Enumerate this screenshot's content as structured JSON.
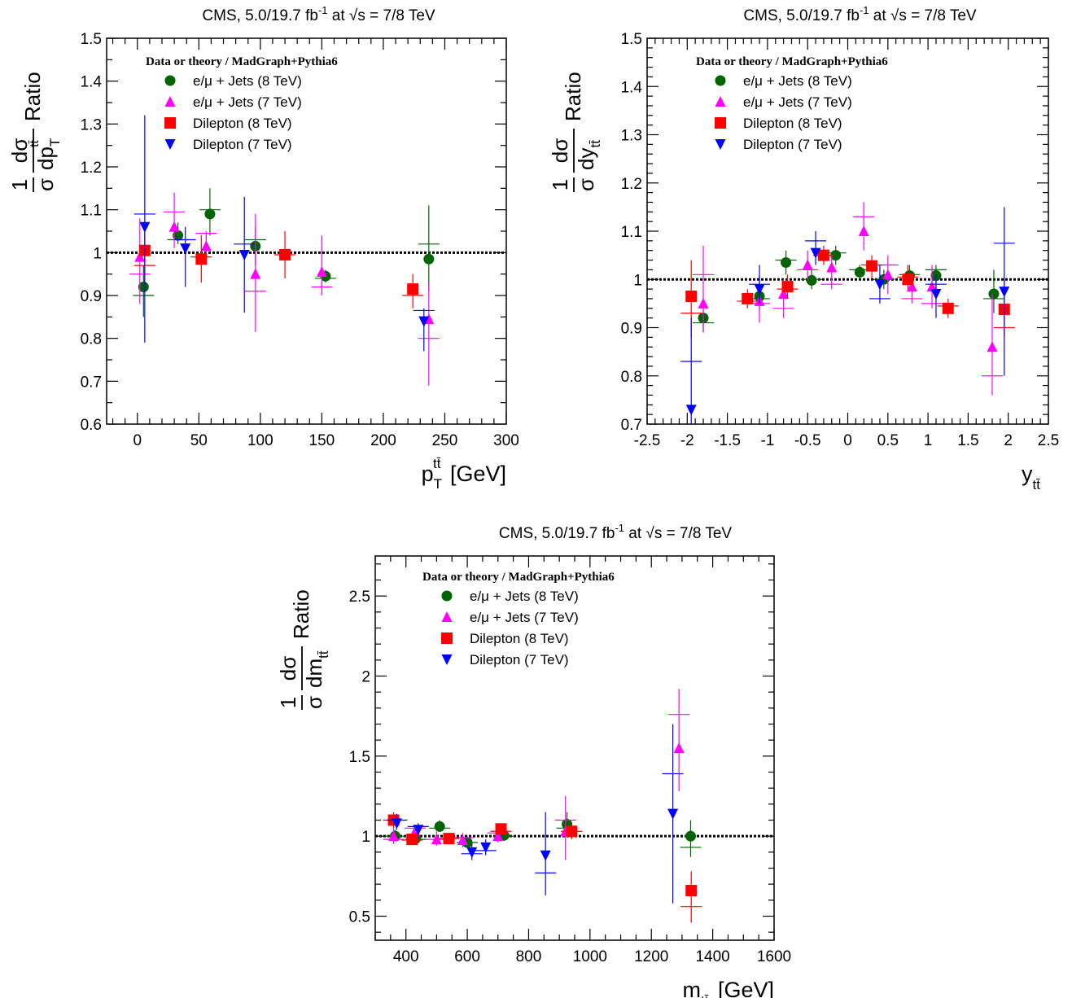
{
  "markers": {
    "ej8": {
      "color": "#006400",
      "shape": "circle"
    },
    "ej7": {
      "color": "#ff00ff",
      "shape": "triangle-up"
    },
    "dl8": {
      "color": "#ff0000",
      "shape": "square"
    },
    "dl7": {
      "color": "#0000ff",
      "shape": "triangle-down"
    }
  },
  "chart_data": [
    {
      "type": "scatter",
      "title": "CMS, 5.0/19.7 fb⁻¹ at √s = 7/8 TeV",
      "xlabel": "p_T^{tt̄} [GeV]",
      "ylabel": "1/σ dσ/dp_T^{tt̄} Ratio",
      "xlim": [
        -25,
        300
      ],
      "ylim": [
        0.6,
        1.5
      ],
      "xticks": [
        "0",
        "50",
        "100",
        "150",
        "200",
        "250",
        "300"
      ],
      "yticks": [
        "0.6",
        "0.7",
        "0.8",
        "0.9",
        "1",
        "1.1",
        "1.2",
        "1.3",
        "1.4",
        "1.5"
      ],
      "reference_line": 1.0,
      "legend_title": "Data or theory / MadGraph+Pythia6",
      "legend_position": "top-left",
      "series": [
        {
          "key": "ej8",
          "name": "e/μ + Jets (8 TeV)",
          "points": [
            {
              "x": 5,
              "y": 0.92,
              "lo": 0.85,
              "hi": 0.97,
              "t": 0.9
            },
            {
              "x": 33,
              "y": 1.04,
              "lo": 1.02,
              "hi": 1.07,
              "t": 1.03
            },
            {
              "x": 59,
              "y": 1.09,
              "lo": 1.04,
              "hi": 1.15,
              "t": 1.1
            },
            {
              "x": 96,
              "y": 1.015,
              "lo": 0.97,
              "hi": 1.06,
              "t": 1.03
            },
            {
              "x": 153,
              "y": 0.945,
              "lo": 0.93,
              "hi": 0.96,
              "t": 0.94
            },
            {
              "x": 237,
              "y": 0.985,
              "lo": 0.91,
              "hi": 1.11,
              "t": 1.02
            }
          ]
        },
        {
          "key": "ej7",
          "name": "e/μ + Jets (7 TeV)",
          "points": [
            {
              "x": 2,
              "y": 0.99,
              "lo": 0.88,
              "hi": 1.08,
              "t": 0.95
            },
            {
              "x": 30,
              "y": 1.06,
              "lo": 1.01,
              "hi": 1.14,
              "t": 1.095
            },
            {
              "x": 56,
              "y": 1.015,
              "lo": 0.99,
              "hi": 1.05,
              "t": 1.045
            },
            {
              "x": 96,
              "y": 0.95,
              "lo": 0.815,
              "hi": 1.09,
              "t": 0.91
            },
            {
              "x": 150,
              "y": 0.955,
              "lo": 0.9,
              "hi": 1.04,
              "t": 0.92
            },
            {
              "x": 237,
              "y": 0.845,
              "lo": 0.69,
              "hi": 0.93,
              "t": 0.8
            }
          ]
        },
        {
          "key": "dl8",
          "name": "Dilepton (8 TeV)",
          "points": [
            {
              "x": 6,
              "y": 1.005,
              "lo": 0.93,
              "hi": 1.06,
              "t": 0.97
            },
            {
              "x": 52,
              "y": 0.985,
              "lo": 0.93,
              "hi": 1.04,
              "t": 0.99
            },
            {
              "x": 120,
              "y": 0.995,
              "lo": 0.94,
              "hi": 1.05,
              "t": 0.995
            },
            {
              "x": 224,
              "y": 0.915,
              "lo": 0.87,
              "hi": 0.95,
              "t": 0.9
            }
          ]
        },
        {
          "key": "dl7",
          "name": "Dilepton (7 TeV)",
          "points": [
            {
              "x": 6,
              "y": 1.06,
              "lo": 0.79,
              "hi": 1.32,
              "t": 1.09
            },
            {
              "x": 39,
              "y": 1.01,
              "lo": 0.92,
              "hi": 1.06,
              "t": 1.03
            },
            {
              "x": 87,
              "y": 0.995,
              "lo": 0.86,
              "hi": 1.13,
              "t": 1.02
            },
            {
              "x": 233,
              "y": 0.84,
              "lo": 0.77,
              "hi": 0.87,
              "t": 0.865
            }
          ]
        }
      ]
    },
    {
      "type": "scatter",
      "title": "CMS, 5.0/19.7 fb⁻¹ at √s = 7/8 TeV",
      "xlabel": "y_{tt̄}",
      "ylabel": "1/σ dσ/dy_{tt̄} Ratio",
      "xlim": [
        -2.5,
        2.5
      ],
      "ylim": [
        0.7,
        1.5
      ],
      "xticks": [
        "-2.5",
        "-2",
        "-1.5",
        "-1",
        "-0.5",
        "0",
        "0.5",
        "1",
        "1.5",
        "2",
        "2.5"
      ],
      "yticks": [
        "0.7",
        "0.8",
        "0.9",
        "1",
        "1.1",
        "1.2",
        "1.3",
        "1.4",
        "1.5"
      ],
      "reference_line": 1.0,
      "legend_title": "Data or theory / MadGraph+Pythia6",
      "legend_position": "top-left",
      "series": [
        {
          "key": "ej8",
          "name": "e/μ + Jets (8 TeV)",
          "points": [
            {
              "x": -1.8,
              "y": 0.92,
              "lo": 0.89,
              "hi": 0.95,
              "t": 0.91
            },
            {
              "x": -1.1,
              "y": 0.965,
              "lo": 0.94,
              "hi": 0.99,
              "t": 0.96
            },
            {
              "x": -0.77,
              "y": 1.035,
              "lo": 1.01,
              "hi": 1.06,
              "t": 1.04
            },
            {
              "x": -0.45,
              "y": 0.998,
              "lo": 0.98,
              "hi": 1.02,
              "t": 1.0
            },
            {
              "x": -0.15,
              "y": 1.05,
              "lo": 1.03,
              "hi": 1.07,
              "t": 1.055
            },
            {
              "x": 0.15,
              "y": 1.015,
              "lo": 1.0,
              "hi": 1.03,
              "t": 1.02
            },
            {
              "x": 0.45,
              "y": 1.0,
              "lo": 0.98,
              "hi": 1.02,
              "t": 1.0
            },
            {
              "x": 0.77,
              "y": 1.008,
              "lo": 0.99,
              "hi": 1.03,
              "t": 1.01
            },
            {
              "x": 1.1,
              "y": 1.008,
              "lo": 0.98,
              "hi": 1.03,
              "t": 1.02
            },
            {
              "x": 1.82,
              "y": 0.97,
              "lo": 0.93,
              "hi": 1.02,
              "t": 0.96
            }
          ]
        },
        {
          "key": "ej7",
          "name": "e/μ + Jets (7 TeV)",
          "points": [
            {
              "x": -1.8,
              "y": 0.95,
              "lo": 0.89,
              "hi": 1.07,
              "t": 1.01
            },
            {
              "x": -1.1,
              "y": 0.955,
              "lo": 0.91,
              "hi": 1.01,
              "t": 0.95
            },
            {
              "x": -0.8,
              "y": 0.97,
              "lo": 0.92,
              "hi": 1.0,
              "t": 0.94
            },
            {
              "x": -0.5,
              "y": 1.03,
              "lo": 1.0,
              "hi": 1.06,
              "t": 1.02
            },
            {
              "x": -0.2,
              "y": 1.025,
              "lo": 0.98,
              "hi": 1.05,
              "t": 0.99
            },
            {
              "x": 0.2,
              "y": 1.1,
              "lo": 1.06,
              "hi": 1.16,
              "t": 1.13
            },
            {
              "x": 0.5,
              "y": 1.01,
              "lo": 0.97,
              "hi": 1.05,
              "t": 1.03
            },
            {
              "x": 0.8,
              "y": 0.985,
              "lo": 0.95,
              "hi": 1.01,
              "t": 0.96
            },
            {
              "x": 1.05,
              "y": 0.985,
              "lo": 0.94,
              "hi": 1.03,
              "t": 0.95
            },
            {
              "x": 1.8,
              "y": 0.86,
              "lo": 0.76,
              "hi": 0.97,
              "t": 0.8
            }
          ]
        },
        {
          "key": "dl8",
          "name": "Dilepton (8 TeV)",
          "points": [
            {
              "x": -1.95,
              "y": 0.965,
              "lo": 0.88,
              "hi": 1.04,
              "t": 0.93
            },
            {
              "x": -1.25,
              "y": 0.96,
              "lo": 0.94,
              "hi": 0.98,
              "t": 0.955
            },
            {
              "x": -0.75,
              "y": 0.985,
              "lo": 0.96,
              "hi": 1.01,
              "t": 0.98
            },
            {
              "x": -0.3,
              "y": 1.05,
              "lo": 1.03,
              "hi": 1.07,
              "t": 1.05
            },
            {
              "x": 0.3,
              "y": 1.028,
              "lo": 1.0,
              "hi": 1.05,
              "t": 1.03
            },
            {
              "x": 0.75,
              "y": 1.0,
              "lo": 0.98,
              "hi": 1.03,
              "t": 1.005
            },
            {
              "x": 1.25,
              "y": 0.94,
              "lo": 0.92,
              "hi": 0.96,
              "t": 0.945
            },
            {
              "x": 1.95,
              "y": 0.938,
              "lo": 0.88,
              "hi": 1.0,
              "t": 0.9
            }
          ]
        },
        {
          "key": "dl7",
          "name": "Dilepton (7 TeV)",
          "points": [
            {
              "x": -1.95,
              "y": 0.73,
              "lo": 0.7,
              "hi": 0.92,
              "t": 0.83
            },
            {
              "x": -1.1,
              "y": 0.98,
              "lo": 0.95,
              "hi": 1.03,
              "t": 0.99
            },
            {
              "x": -0.4,
              "y": 1.055,
              "lo": 1.03,
              "hi": 1.1,
              "t": 1.08
            },
            {
              "x": 0.4,
              "y": 0.99,
              "lo": 0.95,
              "hi": 1.03,
              "t": 0.96
            },
            {
              "x": 1.1,
              "y": 0.97,
              "lo": 0.92,
              "hi": 1.01,
              "t": 0.99
            },
            {
              "x": 1.95,
              "y": 0.975,
              "lo": 0.8,
              "hi": 1.15,
              "t": 1.075
            }
          ]
        }
      ]
    },
    {
      "type": "scatter",
      "title": "CMS, 5.0/19.7 fb⁻¹ at √s = 7/8 TeV",
      "xlabel": "m_{tt̄} [GeV]",
      "ylabel": "1/σ dσ/dm_{tt̄} Ratio",
      "xlim": [
        300,
        1600
      ],
      "ylim": [
        0.35,
        2.75
      ],
      "xticks": [
        "400",
        "600",
        "800",
        "1000",
        "1200",
        "1400",
        "1600"
      ],
      "yticks": [
        "0.5",
        "1",
        "1.5",
        "2",
        "2.5"
      ],
      "reference_line": 1.0,
      "legend_title": "Data or theory / MadGraph+Pythia6",
      "legend_position": "top-left",
      "series": [
        {
          "key": "ej8",
          "name": "e/μ + Jets (8 TeV)",
          "points": [
            {
              "x": 365,
              "y": 1.0,
              "lo": 0.97,
              "hi": 1.04,
              "t": 1.0
            },
            {
              "x": 432,
              "y": 0.985,
              "lo": 0.96,
              "hi": 1.01,
              "t": 0.98
            },
            {
              "x": 510,
              "y": 1.06,
              "lo": 1.03,
              "hi": 1.1,
              "t": 1.05
            },
            {
              "x": 600,
              "y": 0.96,
              "lo": 0.93,
              "hi": 1.0,
              "t": 0.96
            },
            {
              "x": 720,
              "y": 1.005,
              "lo": 0.97,
              "hi": 1.04,
              "t": 1.0
            },
            {
              "x": 925,
              "y": 1.075,
              "lo": 1.0,
              "hi": 1.15,
              "t": 1.05
            },
            {
              "x": 1328,
              "y": 1.0,
              "lo": 0.87,
              "hi": 1.1,
              "t": 0.93
            }
          ]
        },
        {
          "key": "ej7",
          "name": "e/μ + Jets (7 TeV)",
          "points": [
            {
              "x": 360,
              "y": 1.0,
              "lo": 0.95,
              "hi": 1.05,
              "t": 0.98
            },
            {
              "x": 430,
              "y": 1.03,
              "lo": 0.99,
              "hi": 1.07,
              "t": 1.05
            },
            {
              "x": 500,
              "y": 0.98,
              "lo": 0.94,
              "hi": 1.03,
              "t": 0.98
            },
            {
              "x": 585,
              "y": 0.975,
              "lo": 0.93,
              "hi": 1.02,
              "t": 0.99
            },
            {
              "x": 700,
              "y": 1.0,
              "lo": 0.96,
              "hi": 1.06,
              "t": 1.02
            },
            {
              "x": 920,
              "y": 1.03,
              "lo": 0.85,
              "hi": 1.25,
              "t": 1.1
            },
            {
              "x": 1290,
              "y": 1.55,
              "lo": 1.28,
              "hi": 1.92,
              "t": 1.76
            }
          ]
        },
        {
          "key": "dl8",
          "name": "Dilepton (8 TeV)",
          "points": [
            {
              "x": 360,
              "y": 1.1,
              "lo": 1.05,
              "hi": 1.15,
              "t": 1.1
            },
            {
              "x": 420,
              "y": 0.98,
              "lo": 0.95,
              "hi": 1.01,
              "t": 0.975
            },
            {
              "x": 540,
              "y": 0.985,
              "lo": 0.96,
              "hi": 1.01,
              "t": 0.985
            },
            {
              "x": 710,
              "y": 1.045,
              "lo": 1.01,
              "hi": 1.08,
              "t": 1.03
            },
            {
              "x": 940,
              "y": 1.03,
              "lo": 0.98,
              "hi": 1.08,
              "t": 1.03
            },
            {
              "x": 1330,
              "y": 0.66,
              "lo": 0.46,
              "hi": 0.78,
              "t": 0.56
            }
          ]
        },
        {
          "key": "dl7",
          "name": "Dilepton (7 TeV)",
          "points": [
            {
              "x": 370,
              "y": 1.08,
              "lo": 1.04,
              "hi": 1.14,
              "t": 1.1
            },
            {
              "x": 440,
              "y": 1.04,
              "lo": 1.0,
              "hi": 1.08,
              "t": 1.06
            },
            {
              "x": 615,
              "y": 0.9,
              "lo": 0.85,
              "hi": 0.95,
              "t": 0.89
            },
            {
              "x": 660,
              "y": 0.93,
              "lo": 0.88,
              "hi": 0.98,
              "t": 0.91
            },
            {
              "x": 855,
              "y": 0.88,
              "lo": 0.63,
              "hi": 1.15,
              "t": 0.77
            },
            {
              "x": 1270,
              "y": 1.14,
              "lo": 0.58,
              "hi": 1.7,
              "t": 1.39
            }
          ]
        }
      ]
    }
  ]
}
